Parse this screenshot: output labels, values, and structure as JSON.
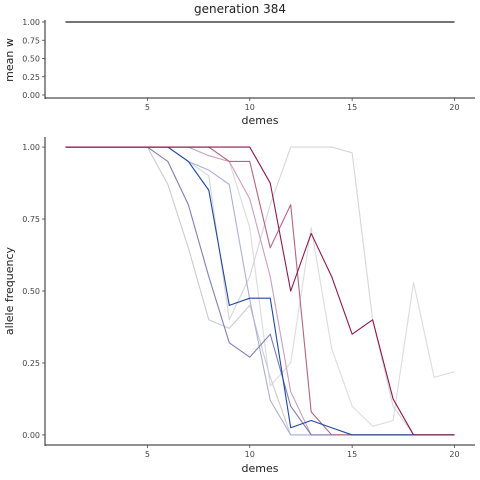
{
  "chart_data": [
    {
      "type": "line",
      "title": "generation 384",
      "xlabel": "demes",
      "ylabel": "mean w",
      "xlim": [
        0,
        21
      ],
      "ylim": [
        0,
        1
      ],
      "x_ticks": [
        5,
        10,
        15,
        20
      ],
      "x_tick_labels": [
        "5",
        "10",
        "15",
        "20"
      ],
      "y_ticks": [
        0,
        0.25,
        0.5,
        0.75,
        1.0
      ],
      "y_tick_labels": [
        "0.00",
        "0.25",
        "0.50",
        "0.75",
        "1.00"
      ],
      "grid": false,
      "series": [
        {
          "color": "#222222",
          "x": [
            1,
            20
          ],
          "y": [
            1.0,
            1.0
          ]
        }
      ]
    },
    {
      "type": "line",
      "title": "",
      "xlabel": "demes",
      "ylabel": "allele frequency",
      "xlim": [
        0,
        21
      ],
      "ylim": [
        -0.035,
        1.035
      ],
      "x_ticks": [
        5,
        10,
        15,
        20
      ],
      "x_tick_labels": [
        "5",
        "10",
        "15",
        "20"
      ],
      "y_ticks": [
        0,
        0.25,
        0.5,
        0.75,
        1.0
      ],
      "y_tick_labels": [
        "0.00",
        "0.25",
        "0.50",
        "0.75",
        "1.00"
      ],
      "grid": false,
      "series": [
        {
          "color": "#dcdcdc",
          "x": [
            1,
            2,
            3,
            4,
            5,
            6,
            7,
            8,
            9,
            10,
            11,
            12,
            13,
            14,
            15,
            16,
            17,
            18,
            19,
            20
          ],
          "y": [
            1.0,
            1.0,
            1.0,
            1.0,
            1.0,
            1.0,
            1.0,
            1.0,
            0.95,
            0.72,
            0.17,
            0.25,
            0.72,
            0.3,
            0.1,
            0.03,
            0.05,
            0.53,
            0.2,
            0.22
          ]
        },
        {
          "color": "#d6d6d6",
          "x": [
            1,
            2,
            3,
            4,
            5,
            6,
            7,
            8,
            9,
            10,
            11,
            12,
            13,
            14,
            15,
            16,
            17,
            18,
            19,
            20
          ],
          "y": [
            1.0,
            1.0,
            1.0,
            1.0,
            1.0,
            1.0,
            0.95,
            0.9,
            0.4,
            0.55,
            0.8,
            1.0,
            1.0,
            1.0,
            0.98,
            0.4,
            0.1,
            0.0,
            0.0,
            0.0
          ]
        },
        {
          "color": "#cccccc",
          "x": [
            1,
            2,
            3,
            4,
            5,
            6,
            7,
            8,
            9,
            10,
            11,
            12,
            13,
            14,
            15,
            16,
            17,
            18,
            19,
            20
          ],
          "y": [
            1.0,
            1.0,
            1.0,
            1.0,
            1.0,
            0.87,
            0.65,
            0.4,
            0.37,
            0.45,
            0.2,
            0.0,
            0.0,
            0.0,
            0.0,
            0.0,
            0.0,
            0.0,
            0.0,
            0.0
          ]
        },
        {
          "color": "#aab0d8",
          "x": [
            1,
            2,
            3,
            4,
            5,
            6,
            7,
            8,
            9,
            10,
            11,
            12,
            13,
            14,
            15,
            16,
            17,
            18,
            19,
            20
          ],
          "y": [
            1.0,
            1.0,
            1.0,
            1.0,
            1.0,
            1.0,
            0.95,
            0.92,
            0.87,
            0.47,
            0.12,
            0.0,
            0.0,
            0.0,
            0.0,
            0.0,
            0.0,
            0.0,
            0.0,
            0.0
          ]
        },
        {
          "color": "#c9a0b8",
          "x": [
            1,
            2,
            3,
            4,
            5,
            6,
            7,
            8,
            9,
            10,
            11,
            12,
            13,
            14,
            15,
            16,
            17,
            18,
            19,
            20
          ],
          "y": [
            1.0,
            1.0,
            1.0,
            1.0,
            1.0,
            1.0,
            1.0,
            0.97,
            0.95,
            0.82,
            0.55,
            0.15,
            0.0,
            0.0,
            0.0,
            0.0,
            0.0,
            0.0,
            0.0,
            0.0
          ]
        },
        {
          "color": "#7d7fb6",
          "x": [
            1,
            2,
            3,
            4,
            5,
            6,
            7,
            8,
            9,
            10,
            11,
            12,
            13,
            14,
            15,
            16,
            17,
            18,
            19,
            20
          ],
          "y": [
            1.0,
            1.0,
            1.0,
            1.0,
            1.0,
            0.95,
            0.8,
            0.55,
            0.32,
            0.27,
            0.35,
            0.1,
            0.0,
            0.0,
            0.0,
            0.0,
            0.0,
            0.0,
            0.0,
            0.0
          ]
        },
        {
          "color": "#b36480",
          "x": [
            1,
            2,
            3,
            4,
            5,
            6,
            7,
            8,
            9,
            10,
            11,
            12,
            13,
            14,
            15,
            16,
            17,
            18,
            19,
            20
          ],
          "y": [
            1.0,
            1.0,
            1.0,
            1.0,
            1.0,
            1.0,
            1.0,
            1.0,
            0.95,
            0.95,
            0.65,
            0.8,
            0.08,
            0.0,
            0.0,
            0.0,
            0.0,
            0.0,
            0.0,
            0.0
          ]
        },
        {
          "color": "#1f47a3",
          "x": [
            1,
            2,
            3,
            4,
            5,
            6,
            7,
            8,
            9,
            10,
            11,
            12,
            13,
            14,
            15,
            16,
            17,
            18,
            19,
            20
          ],
          "y": [
            1.0,
            1.0,
            1.0,
            1.0,
            1.0,
            1.0,
            0.95,
            0.85,
            0.45,
            0.475,
            0.475,
            0.025,
            0.05,
            0.025,
            0.0,
            0.0,
            0.0,
            0.0,
            0.0,
            0.0
          ]
        },
        {
          "color": "#8b1a4a",
          "x": [
            1,
            2,
            3,
            4,
            5,
            6,
            7,
            8,
            9,
            10,
            11,
            12,
            13,
            14,
            15,
            16,
            17,
            18,
            19,
            20
          ],
          "y": [
            1.0,
            1.0,
            1.0,
            1.0,
            1.0,
            1.0,
            1.0,
            1.0,
            1.0,
            1.0,
            0.875,
            0.5,
            0.7,
            0.55,
            0.35,
            0.4,
            0.125,
            0.0,
            0.0,
            0.0
          ]
        }
      ]
    }
  ]
}
